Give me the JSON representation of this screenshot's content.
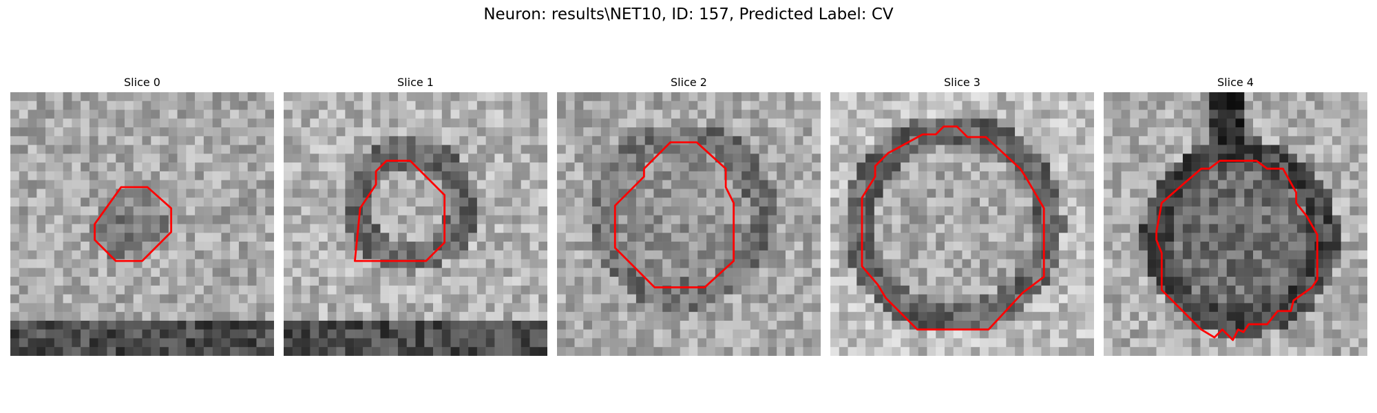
{
  "figure": {
    "title": "Neuron: results\\NET10, ID: 157, Predicted Label: CV"
  },
  "contour_color": "#ff0000",
  "slices": [
    {
      "label": "Slice 0",
      "contour": [
        [
          0.42,
          0.36
        ],
        [
          0.52,
          0.36
        ],
        [
          0.61,
          0.44
        ],
        [
          0.61,
          0.53
        ],
        [
          0.5,
          0.64
        ],
        [
          0.4,
          0.64
        ],
        [
          0.32,
          0.56
        ],
        [
          0.32,
          0.5
        ]
      ]
    },
    {
      "label": "Slice 1",
      "contour": [
        [
          0.39,
          0.26
        ],
        [
          0.48,
          0.26
        ],
        [
          0.54,
          0.32
        ],
        [
          0.61,
          0.39
        ],
        [
          0.61,
          0.57
        ],
        [
          0.54,
          0.64
        ],
        [
          0.27,
          0.64
        ],
        [
          0.29,
          0.44
        ],
        [
          0.35,
          0.35
        ],
        [
          0.35,
          0.3
        ]
      ]
    },
    {
      "label": "Slice 2",
      "contour": [
        [
          0.43,
          0.19
        ],
        [
          0.53,
          0.19
        ],
        [
          0.64,
          0.29
        ],
        [
          0.64,
          0.36
        ],
        [
          0.67,
          0.42
        ],
        [
          0.67,
          0.64
        ],
        [
          0.56,
          0.74
        ],
        [
          0.37,
          0.74
        ],
        [
          0.22,
          0.59
        ],
        [
          0.22,
          0.43
        ],
        [
          0.33,
          0.32
        ],
        [
          0.33,
          0.29
        ]
      ]
    },
    {
      "label": "Slice 3",
      "contour": [
        [
          0.35,
          0.16
        ],
        [
          0.4,
          0.16
        ],
        [
          0.43,
          0.13
        ],
        [
          0.48,
          0.13
        ],
        [
          0.52,
          0.17
        ],
        [
          0.59,
          0.17
        ],
        [
          0.72,
          0.29
        ],
        [
          0.74,
          0.32
        ],
        [
          0.81,
          0.44
        ],
        [
          0.81,
          0.7
        ],
        [
          0.73,
          0.76
        ],
        [
          0.6,
          0.9
        ],
        [
          0.33,
          0.9
        ],
        [
          0.21,
          0.78
        ],
        [
          0.18,
          0.73
        ],
        [
          0.12,
          0.66
        ],
        [
          0.12,
          0.4
        ],
        [
          0.17,
          0.32
        ],
        [
          0.17,
          0.28
        ],
        [
          0.22,
          0.23
        ],
        [
          0.24,
          0.22
        ]
      ]
    },
    {
      "label": "Slice 4",
      "contour": [
        [
          0.44,
          0.26
        ],
        [
          0.58,
          0.26
        ],
        [
          0.62,
          0.29
        ],
        [
          0.68,
          0.29
        ],
        [
          0.73,
          0.38
        ],
        [
          0.73,
          0.42
        ],
        [
          0.77,
          0.47
        ],
        [
          0.81,
          0.54
        ],
        [
          0.81,
          0.71
        ],
        [
          0.79,
          0.74
        ],
        [
          0.72,
          0.79
        ],
        [
          0.71,
          0.83
        ],
        [
          0.66,
          0.83
        ],
        [
          0.62,
          0.88
        ],
        [
          0.55,
          0.88
        ],
        [
          0.53,
          0.91
        ],
        [
          0.51,
          0.9
        ],
        [
          0.49,
          0.94
        ],
        [
          0.45,
          0.9
        ],
        [
          0.42,
          0.93
        ],
        [
          0.37,
          0.9
        ],
        [
          0.22,
          0.75
        ],
        [
          0.22,
          0.61
        ],
        [
          0.2,
          0.56
        ],
        [
          0.2,
          0.53
        ],
        [
          0.22,
          0.42
        ],
        [
          0.3,
          0.35
        ],
        [
          0.37,
          0.29
        ],
        [
          0.4,
          0.29
        ]
      ]
    }
  ]
}
